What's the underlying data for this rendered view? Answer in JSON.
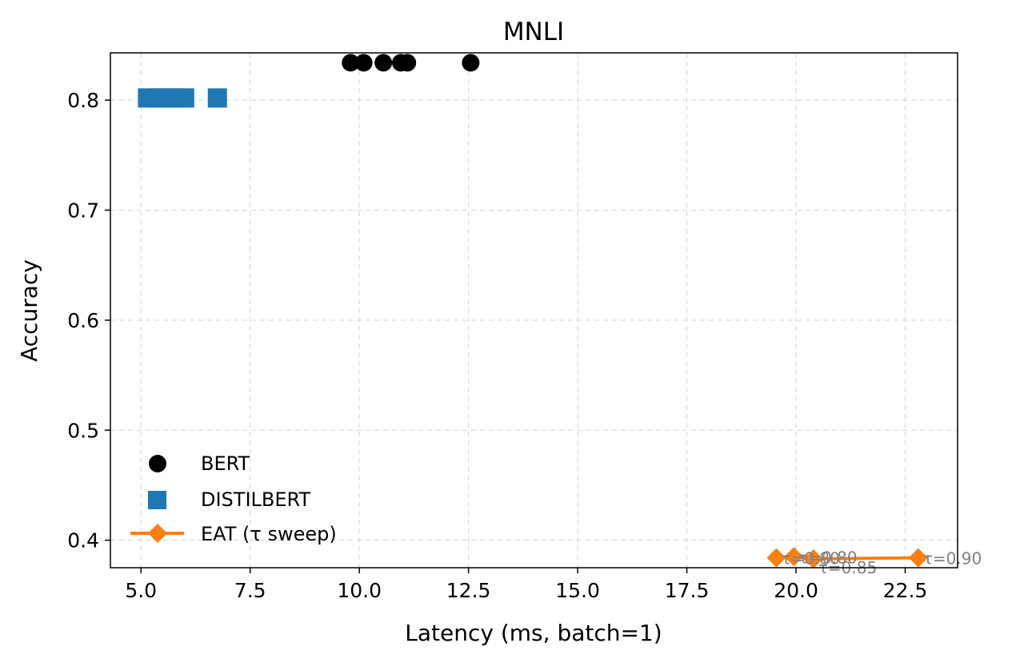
{
  "chart_data": {
    "type": "scatter",
    "title": "MNLI",
    "xlabel": "Latency (ms, batch=1)",
    "ylabel": "Accuracy",
    "xlim": [
      4.3,
      23.7
    ],
    "ylim": [
      0.375,
      0.843
    ],
    "xticks": [
      "5.0",
      "7.5",
      "10.0",
      "12.5",
      "15.0",
      "17.5",
      "20.0",
      "22.5"
    ],
    "yticks": [
      "0.4",
      "0.5",
      "0.6",
      "0.7",
      "0.8"
    ],
    "grid": true,
    "legend_position": "lower-left",
    "series": [
      {
        "name": "BERT",
        "marker": "circle",
        "color": "#000000",
        "line": false,
        "points": [
          {
            "x": 9.8,
            "y": 0.834
          },
          {
            "x": 10.1,
            "y": 0.834
          },
          {
            "x": 10.55,
            "y": 0.834
          },
          {
            "x": 10.95,
            "y": 0.834
          },
          {
            "x": 11.1,
            "y": 0.834
          },
          {
            "x": 12.55,
            "y": 0.834
          }
        ]
      },
      {
        "name": "DISTILBERT",
        "marker": "square",
        "color": "#1f77b4",
        "line": false,
        "points": [
          {
            "x": 5.15,
            "y": 0.802
          },
          {
            "x": 5.4,
            "y": 0.802
          },
          {
            "x": 5.6,
            "y": 0.802
          },
          {
            "x": 5.8,
            "y": 0.802
          },
          {
            "x": 6.0,
            "y": 0.802
          },
          {
            "x": 6.75,
            "y": 0.802
          }
        ]
      },
      {
        "name": "EAT (τ sweep)",
        "marker": "diamond",
        "color": "#ff7f0e",
        "line": true,
        "points": [
          {
            "x": 19.55,
            "y": 0.384,
            "label": "τ=0.80"
          },
          {
            "x": 19.95,
            "y": 0.385,
            "label": "τ=0.80"
          },
          {
            "x": 20.4,
            "y": 0.383,
            "label": "τ=0.85"
          },
          {
            "x": 22.8,
            "y": 0.384,
            "label": "τ=0.90"
          }
        ]
      }
    ]
  }
}
